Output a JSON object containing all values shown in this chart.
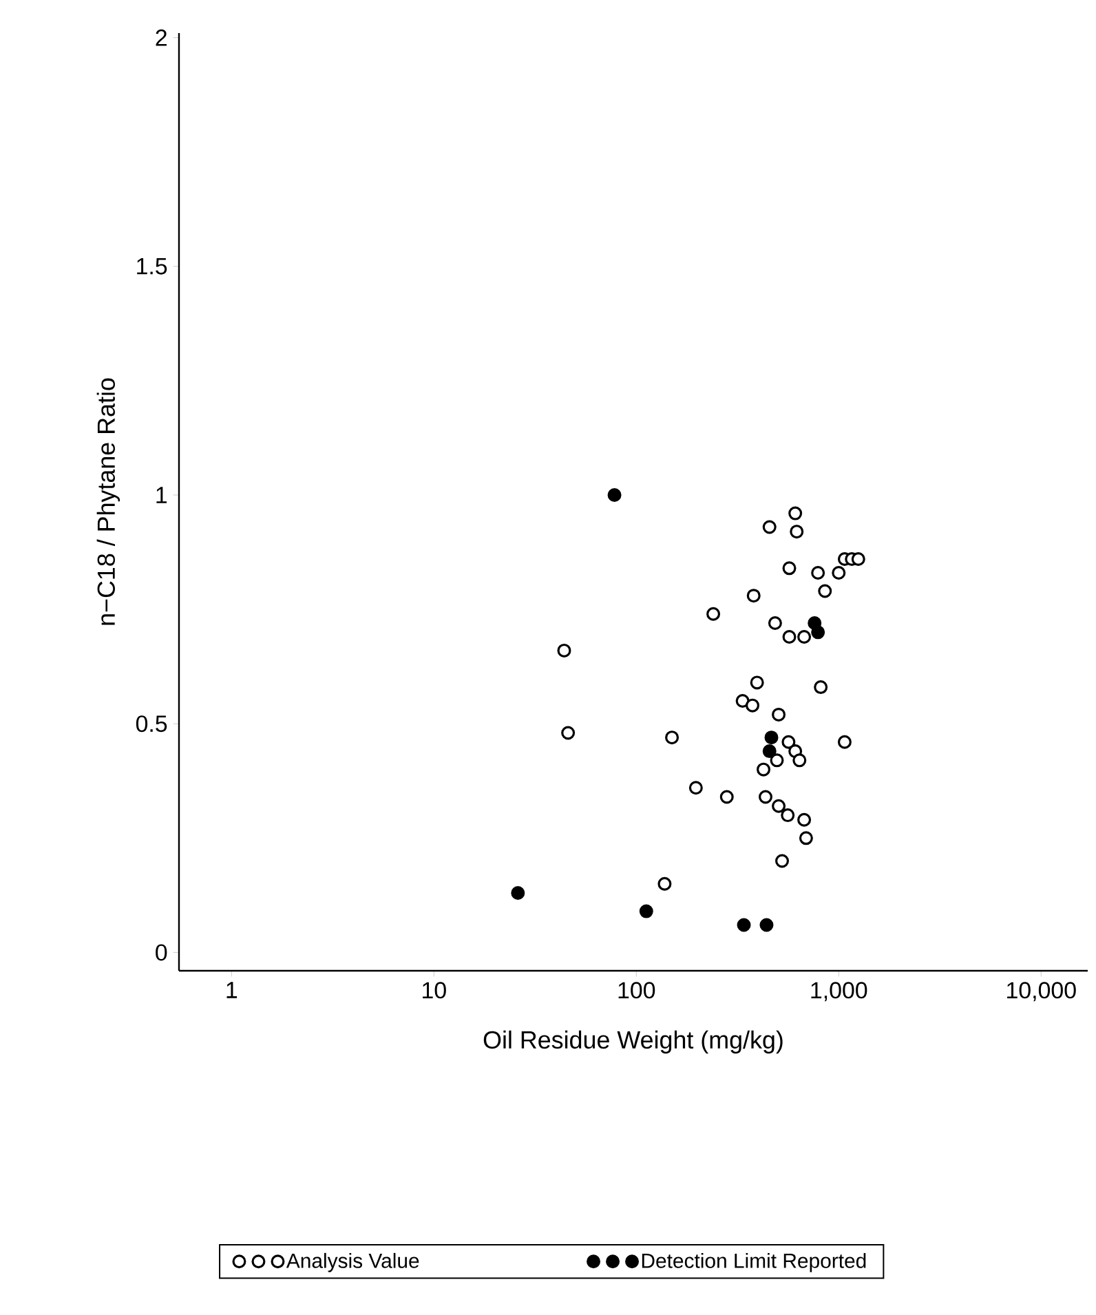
{
  "chart_data": {
    "type": "scatter",
    "xlabel": "Oil Residue Weight (mg/kg)",
    "ylabel": "n−C18 / Phytane Ratio",
    "log": "x",
    "legend": "bottom",
    "grid": false,
    "xlim": [
      0.55,
      17000
    ],
    "ylim": [
      -0.04,
      2.01
    ],
    "xticks": [
      1,
      10,
      100,
      {
        "value": 1000,
        "label": "1,000"
      },
      {
        "value": 10000,
        "label": "10,000"
      }
    ],
    "yticks": [
      0,
      0.5,
      1,
      1.5,
      2
    ],
    "series": [
      {
        "name": "Analysis Value",
        "color": "#000000",
        "x": [
          610,
          455,
          620,
          570,
          790,
          855,
          1000,
          1070,
          1160,
          1250,
          380,
          240,
          485,
          570,
          675,
          44,
          395,
          815,
          335,
          375,
          505,
          46,
          150,
          565,
          610,
          640,
          1070,
          495,
          425,
          197,
          280,
          435,
          505,
          560,
          675,
          690,
          525,
          138
        ],
        "values": [
          0.96,
          0.93,
          0.92,
          0.84,
          0.83,
          0.79,
          0.83,
          0.86,
          0.86,
          0.86,
          0.78,
          0.74,
          0.72,
          0.69,
          0.69,
          0.66,
          0.59,
          0.58,
          0.55,
          0.54,
          0.52,
          0.48,
          0.47,
          0.46,
          0.44,
          0.42,
          0.46,
          0.42,
          0.4,
          0.36,
          0.34,
          0.34,
          0.32,
          0.3,
          0.29,
          0.25,
          0.2,
          0.15
        ]
      },
      {
        "name": "Detection Limit Reported",
        "color": "#000000",
        "x": [
          78,
          26,
          112,
          340,
          440,
          760,
          790,
          465,
          455
        ],
        "values": [
          1.0,
          0.13,
          0.09,
          0.06,
          0.06,
          0.72,
          0.7,
          0.47,
          0.44
        ]
      }
    ]
  }
}
